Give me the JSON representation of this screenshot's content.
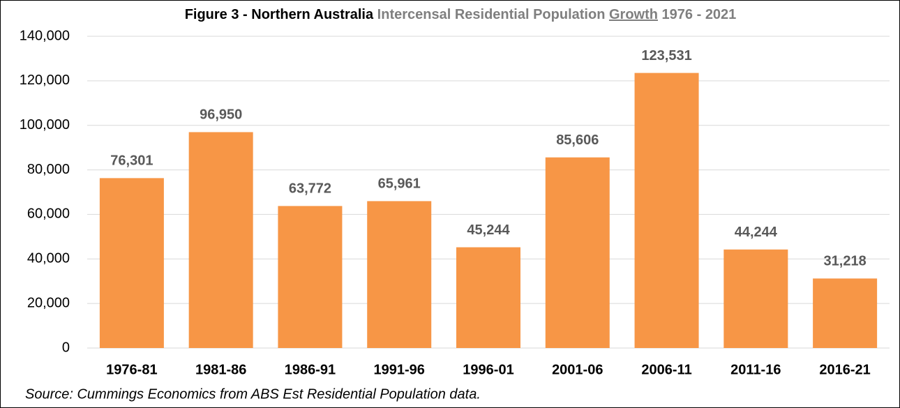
{
  "chart_data": {
    "type": "bar",
    "title": [
      "Figure 3 - Northern Australia",
      "Intercensal Residential Population",
      "Growth",
      "1976 - 2021"
    ],
    "categories": [
      "1976-81",
      "1981-86",
      "1986-91",
      "1991-96",
      "1996-01",
      "2001-06",
      "2006-11",
      "2011-16",
      "2016-21"
    ],
    "values": [
      76301,
      96950,
      63772,
      65961,
      45244,
      85606,
      123531,
      44244,
      31218
    ],
    "value_labels": [
      "76,301",
      "96,950",
      "63,772",
      "65,961",
      "45,244",
      "85,606",
      "123,531",
      "44,244",
      "31,218"
    ],
    "color": "#f79646",
    "ylim": [
      0,
      140000
    ],
    "yticks": [
      0,
      {
        "value": 20000,
        "label": "20,000"
      },
      {
        "value": 40000,
        "label": "40,000"
      },
      {
        "value": 60000,
        "label": "60,000"
      },
      {
        "value": 80000,
        "label": "80,000"
      },
      {
        "value": 100000,
        "label": "100,000"
      },
      {
        "value": 120000,
        "label": "120,000"
      },
      {
        "value": 140000,
        "label": "140,000"
      }
    ],
    "grid": true,
    "source": "Source:  Cummings Economics from ABS Est Residential Population data."
  }
}
